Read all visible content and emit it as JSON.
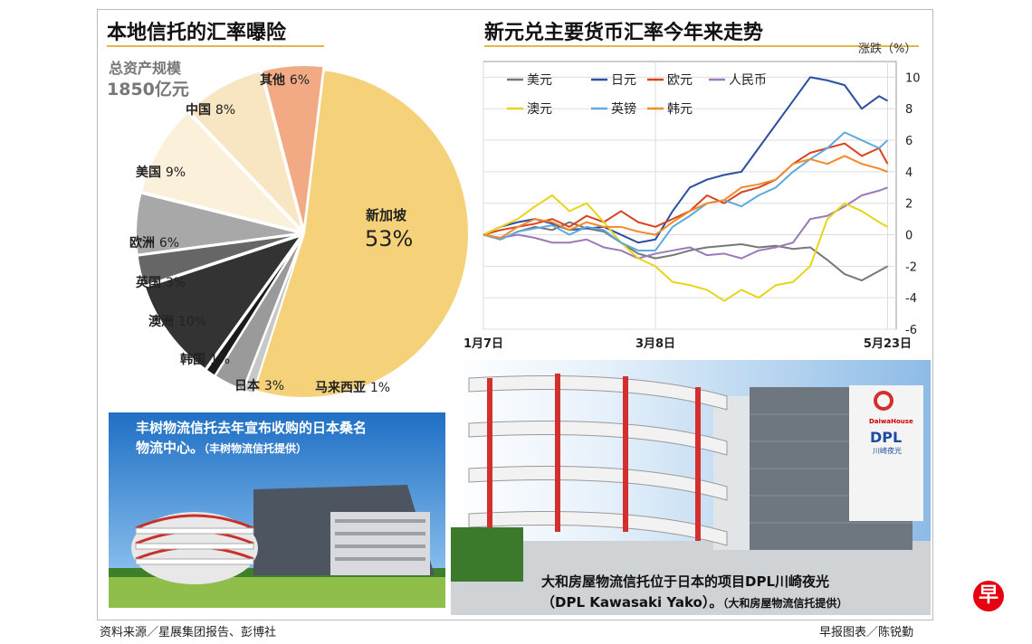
{
  "left_title": "本地信托的汇率曝险",
  "right_title": "新元兑主要货币汇率今年来走势",
  "total_label": "总资产规模",
  "total_value": "1850亿元",
  "colors": {
    "accent": "#e2b84a",
    "singapore": "#f5d27a",
    "japan_yen": "#2b4fa0"
  },
  "chart_data": [
    {
      "type": "pie",
      "title": "本地信托的汇率曝险",
      "slices": [
        {
          "name": "新加坡",
          "pct_label": "53%",
          "value": 53,
          "color": "#f5d27a"
        },
        {
          "name": "马来西亚",
          "pct_label": "1%",
          "value": 1,
          "color": "#c8c8c8"
        },
        {
          "name": "日本",
          "pct_label": "3%",
          "value": 3,
          "color": "#9a9a9a"
        },
        {
          "name": "韩国",
          "pct_label": "1%",
          "value": 1,
          "color": "#1a1a1a"
        },
        {
          "name": "澳洲",
          "pct_label": "10%",
          "value": 10,
          "color": "#333333"
        },
        {
          "name": "英国",
          "pct_label": "3%",
          "value": 3,
          "color": "#666666"
        },
        {
          "name": "欧洲",
          "pct_label": "6%",
          "value": 6,
          "color": "#a8a8a8"
        },
        {
          "name": "美国",
          "pct_label": "9%",
          "value": 9,
          "color": "#fbf0da"
        },
        {
          "name": "中国",
          "pct_label": "8%",
          "value": 8,
          "color": "#f8e6c2"
        },
        {
          "name": "其他",
          "pct_label": "6%",
          "value": 6,
          "color": "#f2aa84"
        }
      ]
    },
    {
      "type": "line",
      "title": "新元兑主要货币汇率今年来走势",
      "ylabel": "涨跌（%）",
      "ylim": [
        -6,
        11
      ],
      "yticks": [
        10,
        8,
        6,
        4,
        2,
        0,
        -2,
        -4,
        -6
      ],
      "xticks": [
        {
          "label": "1月7日",
          "x": 0
        },
        {
          "label": "3月8日",
          "x": 40
        },
        {
          "label": "5月23日",
          "x": 94
        }
      ],
      "xlim": [
        0,
        96
      ],
      "x": [
        0,
        4,
        8,
        12,
        16,
        20,
        24,
        28,
        32,
        36,
        40,
        44,
        48,
        52,
        56,
        60,
        64,
        68,
        72,
        76,
        80,
        84,
        88,
        92,
        94
      ],
      "series": [
        {
          "name": "美元",
          "color": "#777777",
          "values": [
            0,
            -0.3,
            0.2,
            0.5,
            0.3,
            0.8,
            0.4,
            0.2,
            -0.5,
            -1.2,
            -1.5,
            -1.3,
            -1.0,
            -0.8,
            -0.7,
            -0.6,
            -0.8,
            -0.7,
            -0.9,
            -0.8,
            -1.6,
            -2.5,
            -2.9,
            -2.3,
            -2.0
          ]
        },
        {
          "name": "日元",
          "color": "#2b4fa0",
          "values": [
            0,
            0.5,
            0.8,
            1.0,
            0.7,
            0.3,
            0.4,
            0.5,
            0.0,
            -0.5,
            -0.3,
            1.5,
            3.0,
            3.5,
            3.8,
            4.0,
            5.5,
            7.0,
            8.5,
            10.0,
            9.8,
            9.5,
            8.0,
            8.8,
            8.5
          ]
        },
        {
          "name": "欧元",
          "color": "#d9431e",
          "values": [
            0,
            0.3,
            0.5,
            0.7,
            1.0,
            0.5,
            1.2,
            0.8,
            1.5,
            0.8,
            0.5,
            1.0,
            1.5,
            2.5,
            2.0,
            2.7,
            3.0,
            3.5,
            4.5,
            5.2,
            5.5,
            5.8,
            5.0,
            5.5,
            4.5
          ]
        },
        {
          "name": "人民币",
          "color": "#9a7ab8",
          "values": [
            0,
            -0.2,
            0.0,
            -0.2,
            -0.5,
            -0.5,
            -0.3,
            -0.8,
            -1.0,
            -1.5,
            -1.2,
            -1.0,
            -0.8,
            -1.3,
            -1.2,
            -1.5,
            -1.0,
            -0.8,
            -0.5,
            1.0,
            1.2,
            1.8,
            2.5,
            2.8,
            3.0
          ]
        },
        {
          "name": "澳元",
          "color": "#e8d419",
          "values": [
            0,
            0.5,
            1.0,
            1.8,
            2.5,
            1.5,
            2.0,
            0.8,
            -0.5,
            -1.5,
            -2.0,
            -3.0,
            -3.2,
            -3.5,
            -4.2,
            -3.5,
            -4.0,
            -3.2,
            -3.0,
            -2.0,
            1.0,
            2.0,
            1.5,
            0.8,
            0.5
          ]
        },
        {
          "name": "英镑",
          "color": "#5da9e0",
          "values": [
            0,
            -0.3,
            0.2,
            0.4,
            0.6,
            0.0,
            0.5,
            0.3,
            -0.5,
            -1.0,
            -1.0,
            0.5,
            1.2,
            2.0,
            2.2,
            1.8,
            2.5,
            3.0,
            4.0,
            4.8,
            5.5,
            6.5,
            6.0,
            5.5,
            6.0
          ]
        },
        {
          "name": "韩元",
          "color": "#f08a2a",
          "values": [
            0,
            -0.2,
            0.5,
            1.0,
            0.8,
            0.3,
            0.8,
            0.5,
            0.5,
            0.2,
            0.0,
            0.8,
            1.5,
            2.0,
            2.2,
            3.0,
            3.2,
            3.5,
            4.5,
            4.8,
            4.5,
            5.0,
            4.5,
            4.2,
            4.0
          ]
        }
      ]
    }
  ],
  "photo_left_caption_line1": "丰树物流信托去年宣布收购的日本桑名",
  "photo_left_caption_line2": "物流中心。",
  "photo_left_credit": "（丰树物流信托提供）",
  "photo_right_caption_line1": "大和房屋物流信托位于日本的项目DPL川崎夜光",
  "photo_right_caption_line2": "（DPL Kawasaki Yako）。",
  "photo_right_credit": "（大和房屋物流信托提供）",
  "building_sign_brand": "DaiwaHouse",
  "building_sign_dpl": "DPL",
  "building_sign_sub": "川崎夜光",
  "footer_left": "资料来源／星展集团报告、彭博社",
  "footer_right": "早报图表／陈锐勤",
  "logo_char": "早"
}
